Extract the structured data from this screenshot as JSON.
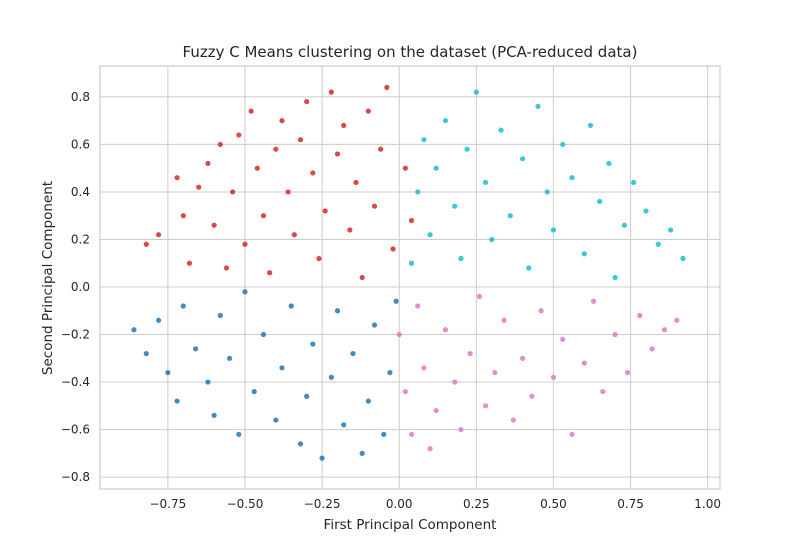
{
  "chart_data": {
    "type": "scatter",
    "title": "Fuzzy C Means clustering on the dataset (PCA-reduced data)",
    "xlabel": "First Principal Component",
    "ylabel": "Second Principal Component",
    "xlim": [
      -0.97,
      1.04
    ],
    "ylim": [
      -0.85,
      0.93
    ],
    "grid": true,
    "x_ticks": [
      -0.75,
      -0.5,
      -0.25,
      0.0,
      0.25,
      0.5,
      0.75,
      1.0
    ],
    "x_tick_labels": [
      "−0.75",
      "−0.50",
      "−0.25",
      "0.00",
      "0.25",
      "0.50",
      "0.75",
      "1.00"
    ],
    "y_ticks": [
      -0.8,
      -0.6,
      -0.4,
      -0.2,
      0.0,
      0.2,
      0.4,
      0.6,
      0.8
    ],
    "y_tick_labels": [
      "−0.8",
      "−0.6",
      "−0.4",
      "−0.2",
      "0.0",
      "0.2",
      "0.4",
      "0.6",
      "0.8"
    ],
    "series": [
      {
        "color": "#d62728",
        "points": [
          [
            -0.82,
            0.18
          ],
          [
            -0.78,
            0.22
          ],
          [
            -0.72,
            0.46
          ],
          [
            -0.7,
            0.3
          ],
          [
            -0.68,
            0.1
          ],
          [
            -0.65,
            0.42
          ],
          [
            -0.62,
            0.52
          ],
          [
            -0.6,
            0.26
          ],
          [
            -0.58,
            0.6
          ],
          [
            -0.56,
            0.08
          ],
          [
            -0.54,
            0.4
          ],
          [
            -0.52,
            0.64
          ],
          [
            -0.5,
            0.18
          ],
          [
            -0.48,
            0.74
          ],
          [
            -0.46,
            0.5
          ],
          [
            -0.44,
            0.3
          ],
          [
            -0.42,
            0.06
          ],
          [
            -0.4,
            0.58
          ],
          [
            -0.38,
            0.7
          ],
          [
            -0.36,
            0.4
          ],
          [
            -0.34,
            0.22
          ],
          [
            -0.32,
            0.62
          ],
          [
            -0.3,
            0.78
          ],
          [
            -0.28,
            0.48
          ],
          [
            -0.26,
            0.12
          ],
          [
            -0.24,
            0.32
          ],
          [
            -0.22,
            0.82
          ],
          [
            -0.2,
            0.56
          ],
          [
            -0.18,
            0.68
          ],
          [
            -0.16,
            0.24
          ],
          [
            -0.14,
            0.44
          ],
          [
            -0.12,
            0.04
          ],
          [
            -0.1,
            0.74
          ],
          [
            -0.08,
            0.34
          ],
          [
            -0.06,
            0.58
          ],
          [
            -0.04,
            0.84
          ],
          [
            -0.02,
            0.16
          ],
          [
            0.02,
            0.5
          ],
          [
            0.04,
            0.28
          ]
        ]
      },
      {
        "color": "#17becf",
        "points": [
          [
            0.04,
            0.1
          ],
          [
            0.06,
            0.4
          ],
          [
            0.08,
            0.62
          ],
          [
            0.1,
            0.22
          ],
          [
            0.12,
            0.5
          ],
          [
            0.15,
            0.7
          ],
          [
            0.18,
            0.34
          ],
          [
            0.2,
            0.12
          ],
          [
            0.22,
            0.58
          ],
          [
            0.25,
            0.82
          ],
          [
            0.28,
            0.44
          ],
          [
            0.3,
            0.2
          ],
          [
            0.33,
            0.66
          ],
          [
            0.36,
            0.3
          ],
          [
            0.4,
            0.54
          ],
          [
            0.42,
            0.08
          ],
          [
            0.45,
            0.76
          ],
          [
            0.48,
            0.4
          ],
          [
            0.5,
            0.24
          ],
          [
            0.53,
            0.6
          ],
          [
            0.56,
            0.46
          ],
          [
            0.6,
            0.14
          ],
          [
            0.62,
            0.68
          ],
          [
            0.65,
            0.36
          ],
          [
            0.68,
            0.52
          ],
          [
            0.7,
            0.04
          ],
          [
            0.73,
            0.26
          ],
          [
            0.76,
            0.44
          ],
          [
            0.8,
            0.32
          ],
          [
            0.84,
            0.18
          ],
          [
            0.88,
            0.24
          ],
          [
            0.92,
            0.12
          ]
        ]
      },
      {
        "color": "#1f77b4",
        "points": [
          [
            -0.86,
            -0.18
          ],
          [
            -0.82,
            -0.28
          ],
          [
            -0.78,
            -0.14
          ],
          [
            -0.75,
            -0.36
          ],
          [
            -0.72,
            -0.48
          ],
          [
            -0.7,
            -0.08
          ],
          [
            -0.66,
            -0.26
          ],
          [
            -0.62,
            -0.4
          ],
          [
            -0.6,
            -0.54
          ],
          [
            -0.58,
            -0.12
          ],
          [
            -0.55,
            -0.3
          ],
          [
            -0.52,
            -0.62
          ],
          [
            -0.5,
            -0.02
          ],
          [
            -0.47,
            -0.44
          ],
          [
            -0.44,
            -0.2
          ],
          [
            -0.4,
            -0.56
          ],
          [
            -0.38,
            -0.34
          ],
          [
            -0.35,
            -0.08
          ],
          [
            -0.32,
            -0.66
          ],
          [
            -0.3,
            -0.46
          ],
          [
            -0.28,
            -0.24
          ],
          [
            -0.25,
            -0.72
          ],
          [
            -0.22,
            -0.38
          ],
          [
            -0.2,
            -0.1
          ],
          [
            -0.18,
            -0.58
          ],
          [
            -0.15,
            -0.28
          ],
          [
            -0.12,
            -0.7
          ],
          [
            -0.1,
            -0.48
          ],
          [
            -0.08,
            -0.16
          ],
          [
            -0.05,
            -0.62
          ],
          [
            -0.03,
            -0.36
          ],
          [
            -0.01,
            -0.06
          ]
        ]
      },
      {
        "color": "#e377c2",
        "points": [
          [
            0.0,
            -0.2
          ],
          [
            0.02,
            -0.44
          ],
          [
            0.04,
            -0.62
          ],
          [
            0.06,
            -0.08
          ],
          [
            0.08,
            -0.34
          ],
          [
            0.1,
            -0.68
          ],
          [
            0.12,
            -0.52
          ],
          [
            0.15,
            -0.18
          ],
          [
            0.18,
            -0.4
          ],
          [
            0.2,
            -0.6
          ],
          [
            0.23,
            -0.28
          ],
          [
            0.26,
            -0.04
          ],
          [
            0.28,
            -0.5
          ],
          [
            0.31,
            -0.36
          ],
          [
            0.34,
            -0.14
          ],
          [
            0.37,
            -0.56
          ],
          [
            0.4,
            -0.3
          ],
          [
            0.43,
            -0.46
          ],
          [
            0.46,
            -0.1
          ],
          [
            0.5,
            -0.38
          ],
          [
            0.53,
            -0.22
          ],
          [
            0.56,
            -0.62
          ],
          [
            0.6,
            -0.32
          ],
          [
            0.63,
            -0.06
          ],
          [
            0.66,
            -0.44
          ],
          [
            0.7,
            -0.2
          ],
          [
            0.74,
            -0.36
          ],
          [
            0.78,
            -0.12
          ],
          [
            0.82,
            -0.26
          ],
          [
            0.86,
            -0.18
          ],
          [
            0.9,
            -0.14
          ]
        ]
      }
    ]
  }
}
